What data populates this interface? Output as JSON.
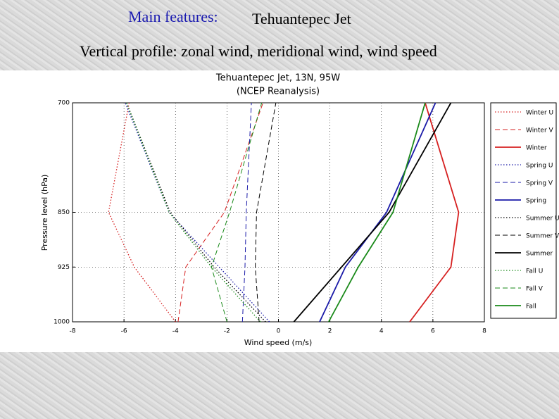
{
  "slide": {
    "heading_label": "Main features:",
    "heading_topic": "Tehuantepec Jet",
    "subtitle": "Vertical profile: zonal wind, meridional wind, wind speed"
  },
  "chart_data": {
    "type": "line",
    "title": "Tehuantepec Jet, 13N, 95W",
    "subtitle": "(NCEP Reanalysis)",
    "x_label": "Wind speed (m/s)",
    "y_label": "Pressure level (hPa)",
    "levels": [
      1000,
      925,
      850,
      700
    ],
    "xlim": [
      -8,
      8
    ],
    "xticks": [
      -8,
      -6,
      -4,
      -2,
      0,
      2,
      4,
      6,
      8
    ],
    "ylim": [
      1000,
      700
    ],
    "yticks": [
      700,
      850,
      925,
      1000
    ],
    "grid": true,
    "legend": "outside-right",
    "series": [
      {
        "name": "Winter U",
        "color": "#d62020",
        "style": "dotted",
        "values": [
          -4.0,
          -5.6,
          -6.6,
          -5.8
        ]
      },
      {
        "name": "Winter V",
        "color": "#d62020",
        "style": "dashed",
        "values": [
          -3.9,
          -3.6,
          -2.1,
          -0.6
        ]
      },
      {
        "name": "Winter",
        "color": "#d62020",
        "style": "solid",
        "values": [
          5.1,
          6.7,
          7.0,
          5.7
        ]
      },
      {
        "name": "Spring U",
        "color": "#1a1aa8",
        "style": "dotted",
        "values": [
          -0.35,
          -2.3,
          -4.25,
          -5.95
        ]
      },
      {
        "name": "Spring V",
        "color": "#1a1aa8",
        "style": "dashed",
        "values": [
          -1.4,
          -1.3,
          -1.25,
          -1.05
        ]
      },
      {
        "name": "Spring",
        "color": "#1a1aa8",
        "style": "solid",
        "values": [
          1.6,
          2.6,
          4.2,
          6.1
        ]
      },
      {
        "name": "Summer U",
        "color": "#000000",
        "style": "dotted",
        "values": [
          -0.5,
          -2.5,
          -4.2,
          -5.9
        ]
      },
      {
        "name": "Summer V",
        "color": "#000000",
        "style": "dashed",
        "values": [
          -0.75,
          -0.9,
          -0.85,
          -0.1
        ]
      },
      {
        "name": "Summer",
        "color": "#000000",
        "style": "solid",
        "values": [
          0.6,
          2.45,
          4.3,
          6.7
        ]
      },
      {
        "name": "Fall U",
        "color": "#1a8a1a",
        "style": "dotted",
        "values": [
          -0.7,
          -2.6,
          -4.25,
          -5.9
        ]
      },
      {
        "name": "Fall V",
        "color": "#1a8a1a",
        "style": "dashed",
        "values": [
          -2.0,
          -2.6,
          -1.9,
          -0.65
        ]
      },
      {
        "name": "Fall",
        "color": "#1a8a1a",
        "style": "solid",
        "values": [
          1.95,
          3.1,
          4.45,
          5.7
        ]
      }
    ]
  }
}
